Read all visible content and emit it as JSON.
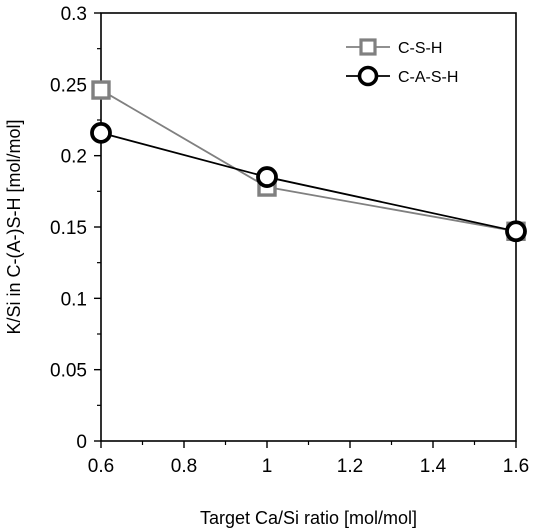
{
  "chart_data": {
    "type": "line",
    "xlabel": "Target Ca/Si ratio [mol/mol]",
    "ylabel": "K/Si in C-(A-)S-H [mol/mol]",
    "xlim": [
      0.6,
      1.6
    ],
    "ylim": [
      0,
      0.3
    ],
    "x_ticks": [
      0.6,
      0.8,
      1.0,
      1.2,
      1.4,
      1.6
    ],
    "x_tick_labels": [
      "0.6",
      "0.8",
      "1",
      "1.2",
      "1.4",
      "1.6"
    ],
    "y_ticks": [
      0,
      0.05,
      0.1,
      0.15,
      0.2,
      0.25,
      0.3
    ],
    "y_tick_labels": [
      "0",
      "0.05",
      "0.1",
      "0.15",
      "0.2",
      "0.25",
      "0.3"
    ],
    "grid": false,
    "legend_position": "top-right",
    "series": [
      {
        "name": "C-S-H",
        "marker": "square",
        "color": "#808080",
        "x": [
          0.6,
          1.0,
          1.6
        ],
        "y": [
          0.246,
          0.178,
          0.147
        ]
      },
      {
        "name": "C-A-S-H",
        "marker": "circle",
        "color": "#000000",
        "x": [
          0.6,
          1.0,
          1.6
        ],
        "y": [
          0.216,
          0.185,
          0.147
        ]
      }
    ]
  }
}
